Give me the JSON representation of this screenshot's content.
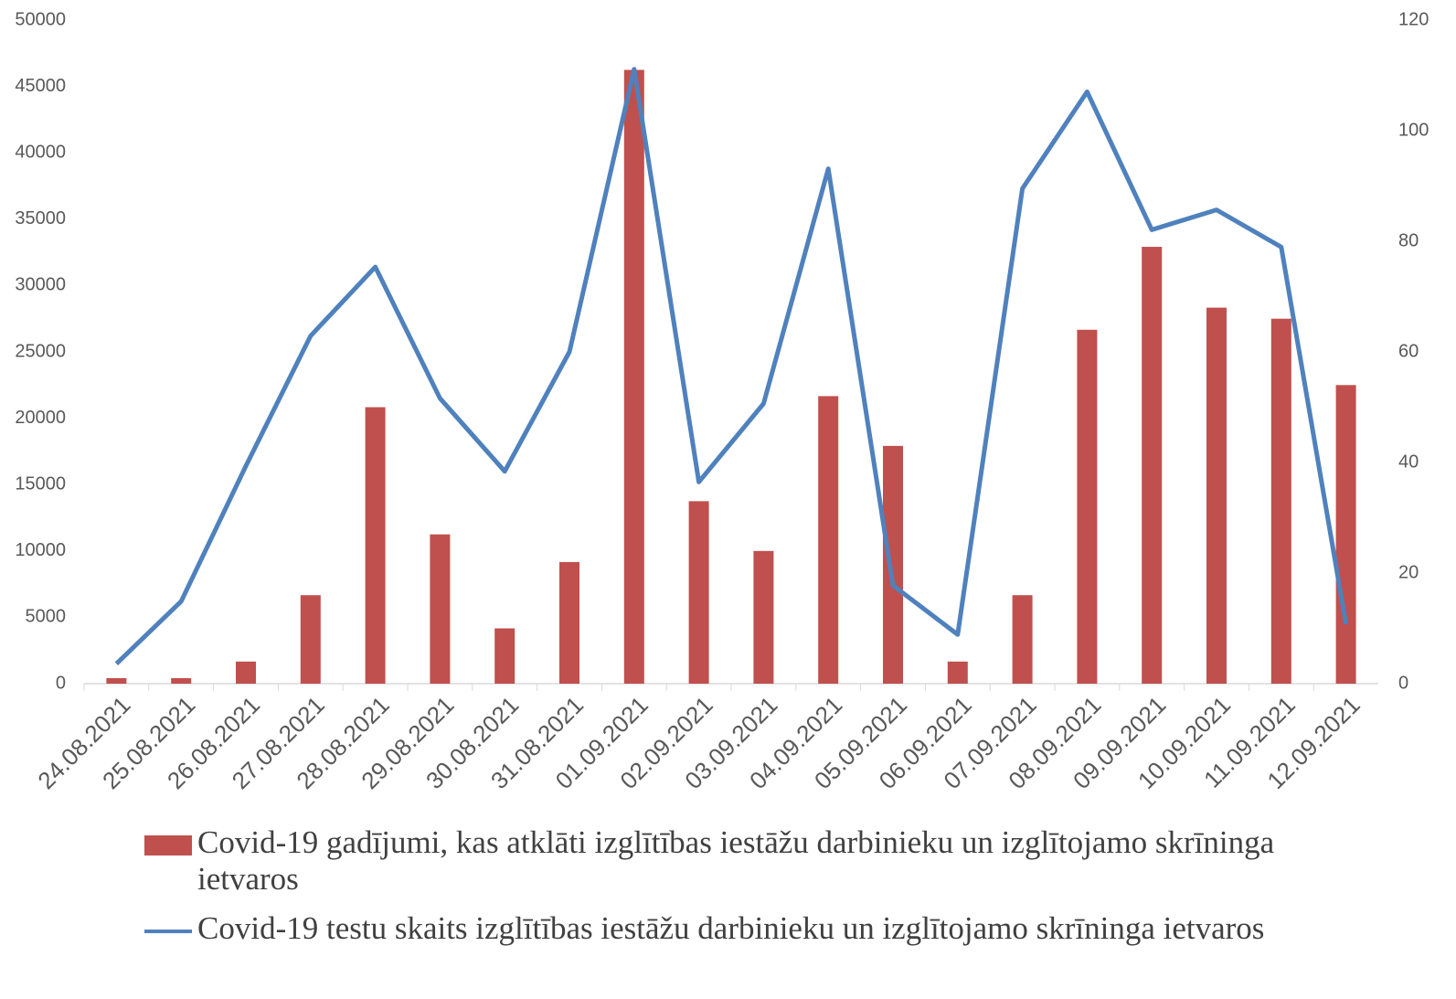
{
  "chart_data": {
    "type": "bar_line",
    "categories": [
      "24.08.2021",
      "25.08.2021",
      "26.08.2021",
      "27.08.2021",
      "28.08.2021",
      "29.08.2021",
      "30.08.2021",
      "31.08.2021",
      "01.09.2021",
      "02.09.2021",
      "03.09.2021",
      "04.09.2021",
      "05.09.2021",
      "06.09.2021",
      "07.09.2021",
      "08.09.2021",
      "09.09.2021",
      "10.09.2021",
      "11.09.2021",
      "12.09.2021"
    ],
    "series": [
      {
        "name": "Covid-19 gadījumi, kas atklāti izglītības iestāžu darbinieku un izglītojamo skrīninga ietvaros",
        "type": "bar",
        "axis": "y2",
        "color": "#c0504d",
        "values": [
          1,
          1,
          4,
          16,
          50,
          27,
          10,
          22,
          111,
          33,
          24,
          52,
          43,
          4,
          16,
          64,
          79,
          68,
          66,
          54
        ]
      },
      {
        "name": "Covid-19 testu skaits izglītības iestāžu darbinieku un izglītojamo skrīninga ietvaros",
        "type": "line",
        "axis": "y",
        "color": "#4f81bd",
        "values": [
          1500,
          6200,
          16400,
          26200,
          31400,
          21500,
          16000,
          25000,
          46300,
          15200,
          21100,
          38800,
          7400,
          3700,
          37300,
          44600,
          34200,
          35700,
          32900,
          4500
        ]
      }
    ],
    "ylim": [
      0,
      50000
    ],
    "yticks": [
      0,
      5000,
      10000,
      15000,
      20000,
      25000,
      30000,
      35000,
      40000,
      45000,
      50000
    ],
    "y2lim": [
      0,
      120
    ],
    "y2ticks": [
      0,
      20,
      40,
      60,
      80,
      100,
      120
    ]
  }
}
